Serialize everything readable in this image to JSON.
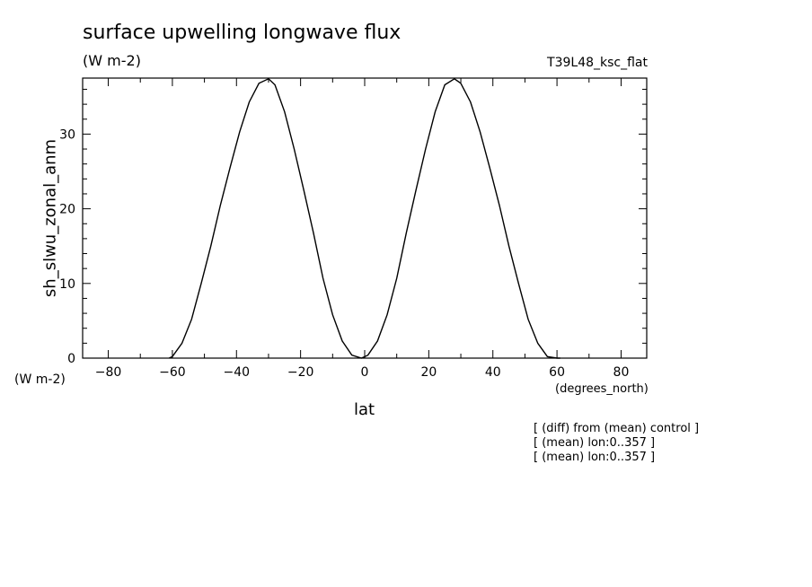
{
  "chart_data": {
    "type": "line",
    "title": "surface upwelling longwave flux",
    "title_units": "(W m-2)",
    "run_label": "T39L48_ksc_flat",
    "xlabel": "lat",
    "x_units": "(degrees_north)",
    "ylabel": "sh_slwu_zonal_anm",
    "y_units": "(W m-2)",
    "xlim": [
      -88,
      88
    ],
    "ylim": [
      0,
      37.5
    ],
    "xticks": [
      -80,
      -60,
      -40,
      -20,
      0,
      20,
      40,
      60,
      80
    ],
    "xtick_labels": [
      "−80",
      "−60",
      "−40",
      "−20",
      "0",
      "20",
      "40",
      "60",
      "80"
    ],
    "yticks": [
      0,
      10,
      20,
      30
    ],
    "ytick_labels": [
      "0",
      "10",
      "20",
      "30"
    ],
    "grid": false,
    "series": [
      {
        "x": [
          -61,
          -60,
          -57,
          -54,
          -51,
          -48,
          -45,
          -42,
          -39,
          -36,
          -33,
          -30,
          -28,
          -25,
          -22,
          -19,
          -16,
          -13,
          -10,
          -7,
          -4,
          -1,
          1,
          4,
          7,
          10,
          13,
          16,
          19,
          22,
          25,
          28,
          30,
          33,
          36,
          39,
          42,
          45,
          48,
          51,
          54,
          57,
          60,
          61
        ],
        "y": [
          0,
          0.2,
          2,
          5.2,
          10,
          15,
          20.5,
          25.5,
          30.3,
          34.3,
          36.8,
          37.4,
          36.6,
          33,
          28,
          22.5,
          16.8,
          10.7,
          5.8,
          2.3,
          0.4,
          0,
          0.4,
          2.3,
          5.8,
          10.7,
          16.8,
          22.5,
          28,
          33,
          36.6,
          37.4,
          36.8,
          34.3,
          30.3,
          25.5,
          20.5,
          15,
          10,
          5.2,
          2,
          0.2,
          0,
          0
        ]
      }
    ]
  },
  "annotations": [
    "[ (diff) from (mean) control ]",
    "[ (mean) lon:0..357 ]",
    "[ (mean) lon:0..357 ]"
  ]
}
